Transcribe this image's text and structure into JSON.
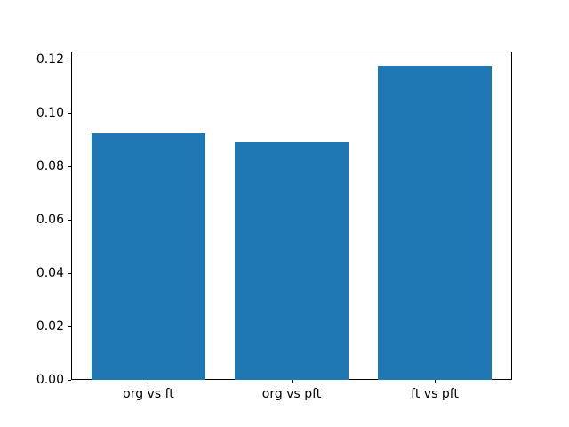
{
  "chart_data": {
    "type": "bar",
    "title": "",
    "xlabel": "",
    "ylabel": "",
    "categories": [
      "org vs ft",
      "org vs pft",
      "ft vs pft"
    ],
    "values": [
      0.0925,
      0.0891,
      0.1178
    ],
    "bar_color": "#1f77b4",
    "background_color": "#ffffff",
    "ylim": [
      0,
      0.123
    ],
    "xlim": [
      -0.54,
      2.54
    ],
    "bar_width": 0.8,
    "yticks": [
      0.0,
      0.02,
      0.04,
      0.06,
      0.08,
      0.1,
      0.12
    ],
    "ytick_labels": [
      "0.00",
      "0.02",
      "0.04",
      "0.06",
      "0.08",
      "0.10",
      "0.12"
    ],
    "grid": false,
    "legend": null
  }
}
